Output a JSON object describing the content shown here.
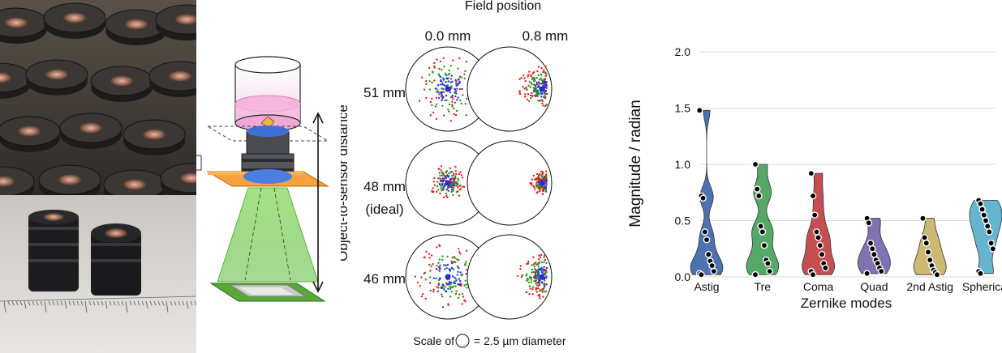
{
  "spot_panel": {
    "title": "Field position",
    "columns": [
      "0.0 mm",
      "0.8 mm"
    ],
    "rows": [
      {
        "label": "51 mm",
        "sublabel": ""
      },
      {
        "label": "48 mm",
        "sublabel": "(ideal)"
      },
      {
        "label": "46 mm",
        "sublabel": ""
      }
    ],
    "axis_label": "Object-to-sensor distance",
    "scale_prefix": "Scale of",
    "scale_suffix": "= 2.5 µm diameter",
    "spot_colors": [
      "#1f2fe0",
      "#1a9a1a",
      "#e02020"
    ]
  },
  "chart_data": {
    "type": "violin",
    "xlabel": "Zernike modes",
    "ylabel": "Magnitude / radian",
    "ylim": [
      0,
      2.0
    ],
    "yticks": [
      0.0,
      0.5,
      1.0,
      1.5,
      2.0
    ],
    "ytick_labels": [
      "0.0",
      "0.5",
      "1.0",
      "1.5",
      "2.0"
    ],
    "grid": true,
    "categories": [
      "Astig",
      "Tre",
      "Coma",
      "Quad",
      "2nd Astig",
      "Spherical"
    ],
    "colors": [
      "#4c72b0",
      "#55a868",
      "#c44e52",
      "#8172b2",
      "#ccb974",
      "#64b5cd"
    ],
    "series": [
      {
        "values": [
          1.48,
          0.72,
          0.7,
          0.4,
          0.33,
          0.2,
          0.14,
          0.1,
          0.05,
          0.03,
          0.02
        ]
      },
      {
        "values": [
          1.0,
          0.78,
          0.72,
          0.45,
          0.4,
          0.28,
          0.15,
          0.12,
          0.05,
          0.02
        ]
      },
      {
        "values": [
          0.92,
          0.72,
          0.55,
          0.4,
          0.35,
          0.28,
          0.2,
          0.12,
          0.08,
          0.05,
          0.02
        ]
      },
      {
        "values": [
          0.52,
          0.48,
          0.3,
          0.25,
          0.2,
          0.15,
          0.12,
          0.08,
          0.05,
          0.03
        ]
      },
      {
        "values": [
          0.52,
          0.35,
          0.3,
          0.22,
          0.15,
          0.1,
          0.06,
          0.04,
          0.02
        ]
      },
      {
        "values": [
          0.68,
          0.65,
          0.6,
          0.55,
          0.5,
          0.45,
          0.4,
          0.3,
          0.25,
          0.05,
          0.03
        ]
      }
    ]
  }
}
